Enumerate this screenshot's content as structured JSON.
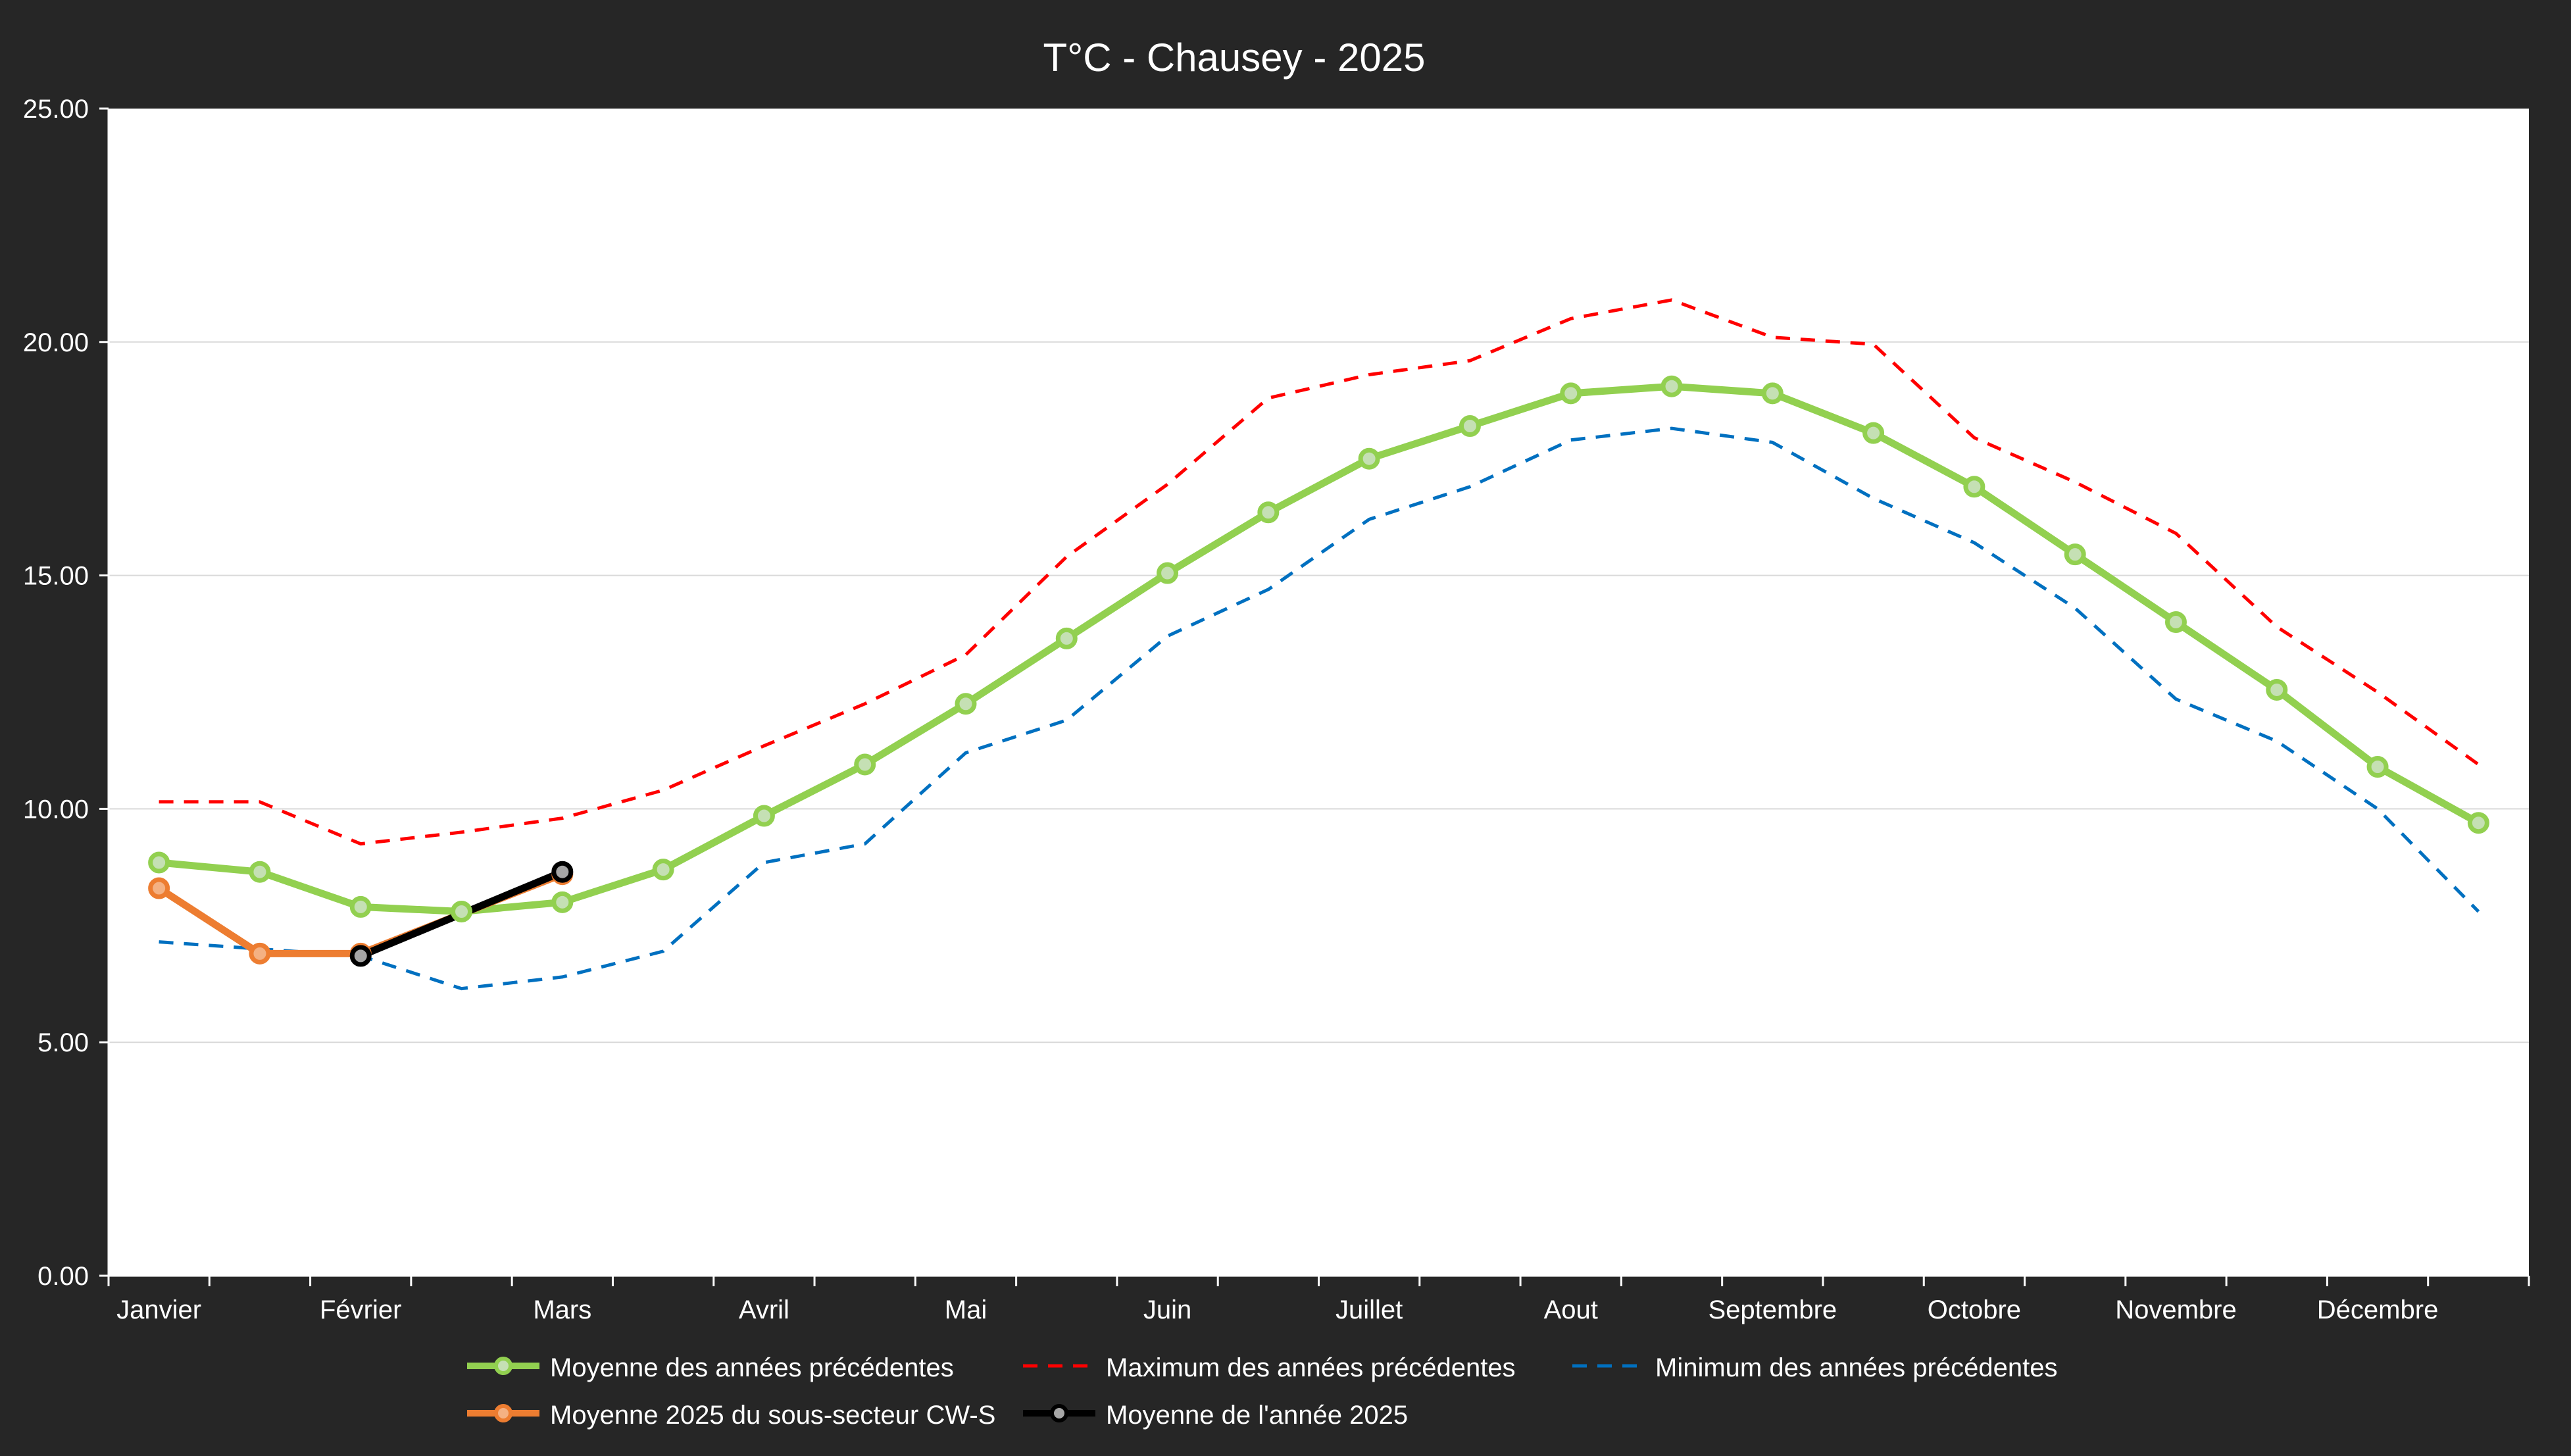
{
  "chart_data": {
    "type": "line",
    "title": "T°C  - Chausey - 2025",
    "xlabel": "",
    "ylabel": "",
    "ylim": [
      0,
      25
    ],
    "y_ticks": [
      "0.00",
      "5.00",
      "10.00",
      "15.00",
      "20.00",
      "25.00"
    ],
    "y_tick_values": [
      0,
      5,
      10,
      15,
      20,
      25
    ],
    "month_labels": [
      "Janvier",
      "Février",
      "Mars",
      "Avril",
      "Mai",
      "Juin",
      "Juillet",
      "Aout",
      "Septembre",
      "Octobre",
      "Novembre",
      "Décembre"
    ],
    "points_per_month": 2,
    "grid": "horizontal",
    "legend_position": "bottom",
    "series": [
      {
        "name": "Moyenne des années précédentes",
        "color": "#92D050",
        "style": "solid-markers",
        "values": [
          8.85,
          8.65,
          7.9,
          7.8,
          8.0,
          8.7,
          9.85,
          10.95,
          12.25,
          13.65,
          15.05,
          16.35,
          17.5,
          18.2,
          18.9,
          19.05,
          18.9,
          18.05,
          16.9,
          15.45,
          14.0,
          12.55,
          10.9,
          9.7
        ]
      },
      {
        "name": "Maximum des années précédentes",
        "color": "#FF0000",
        "style": "dashed",
        "values": [
          10.15,
          10.15,
          9.25,
          9.5,
          9.8,
          10.4,
          11.35,
          12.25,
          13.3,
          15.4,
          16.95,
          18.8,
          19.3,
          19.6,
          20.5,
          20.9,
          20.1,
          19.95,
          17.95,
          17.0,
          15.9,
          13.9,
          12.5,
          10.95
        ]
      },
      {
        "name": "Minimum des années précédentes",
        "color": "#0070C0",
        "style": "dashed",
        "values": [
          7.15,
          7.0,
          6.85,
          6.15,
          6.4,
          6.95,
          8.85,
          9.25,
          11.2,
          11.9,
          13.7,
          14.7,
          16.2,
          16.9,
          17.9,
          18.15,
          17.85,
          16.65,
          15.7,
          14.3,
          12.35,
          11.45,
          10.0,
          7.8
        ]
      },
      {
        "name": "Moyenne 2025 du sous-secteur CW-S",
        "color": "#ED7D31",
        "style": "solid-markers",
        "values": [
          8.3,
          6.9,
          6.9,
          null,
          8.6
        ]
      },
      {
        "name": "Moyenne de l'année 2025",
        "color": "#000000",
        "style": "solid-markers-grey",
        "values": [
          null,
          null,
          6.85,
          null,
          8.65
        ]
      }
    ]
  }
}
